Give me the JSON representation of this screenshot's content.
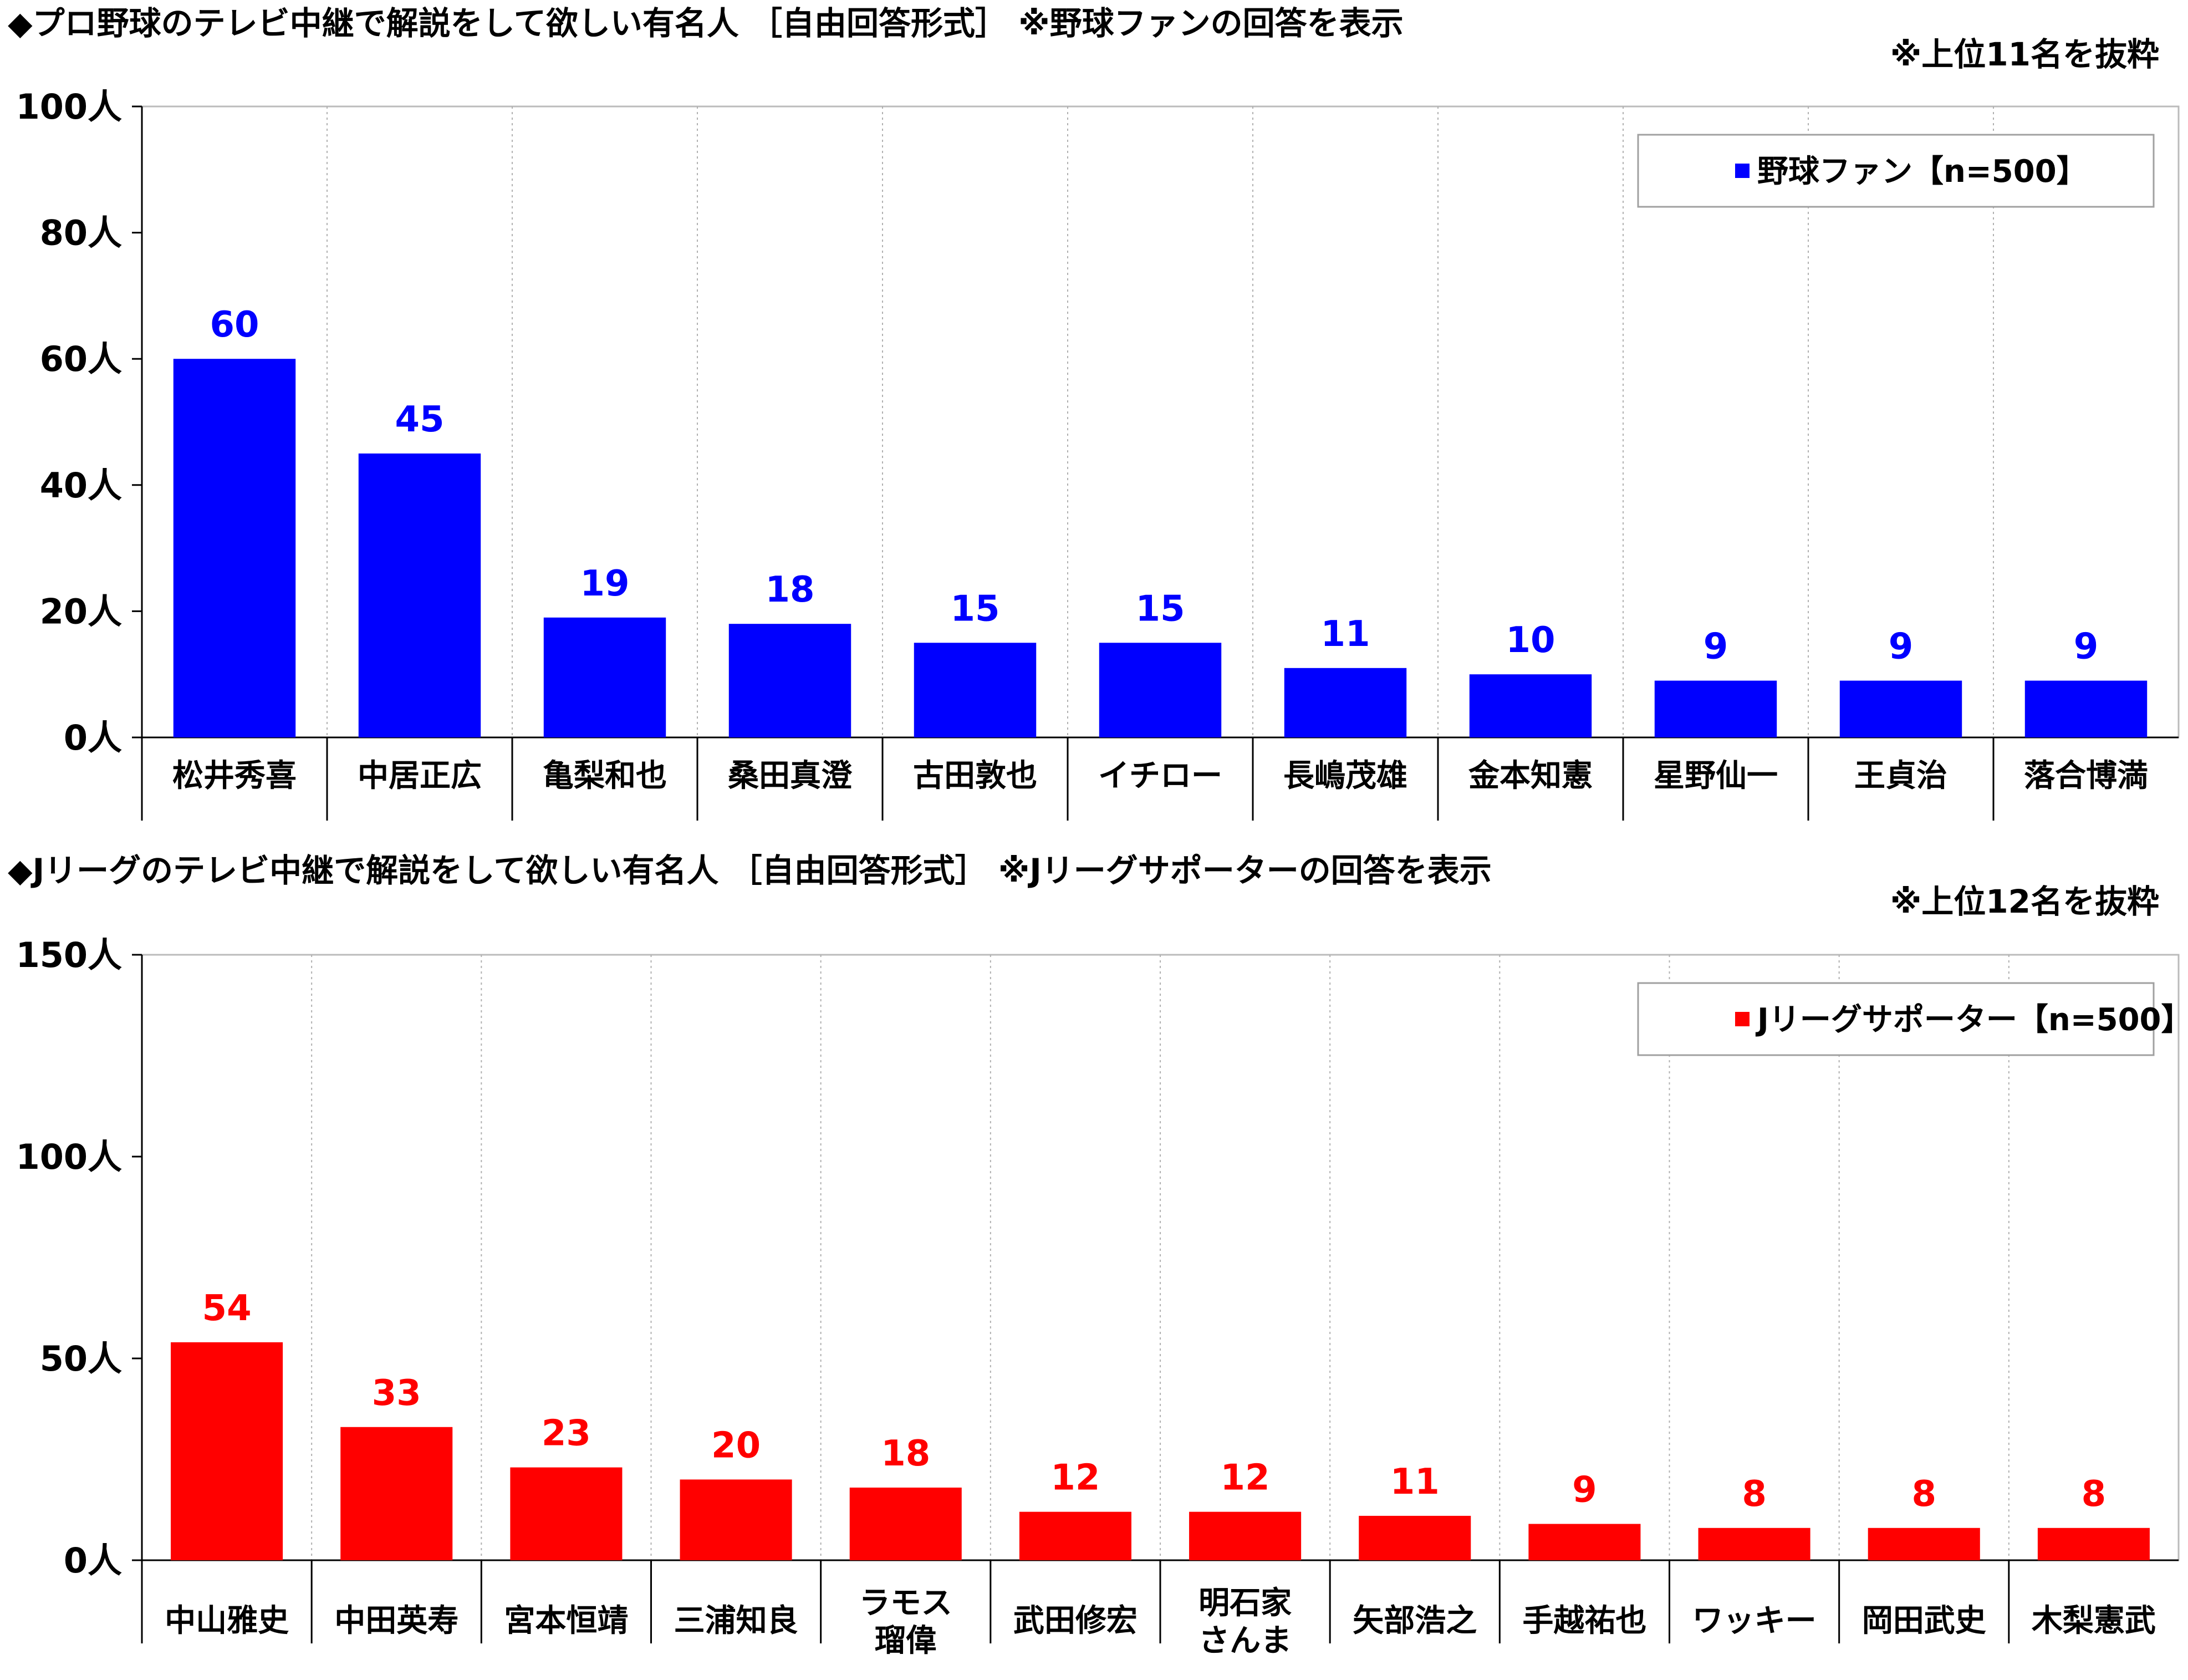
{
  "chart_data": [
    {
      "type": "bar",
      "title": "◆プロ野球のテレビ中継で解説をして欲しい有名人 ［自由回答形式］ ※野球ファンの回答を表示",
      "note": "※上位11名を抜粋",
      "categories": [
        "松井秀喜",
        "中居正広",
        "亀梨和也",
        "桑田真澄",
        "古田敦也",
        "イチロー",
        "長嶋茂雄",
        "金本知憲",
        "星野仙一",
        "王貞治",
        "落合博満"
      ],
      "series": [
        {
          "name": "野球ファン【n=500】",
          "color": "#0000ff",
          "values": [
            60,
            45,
            19,
            18,
            15,
            15,
            11,
            10,
            9,
            9,
            9
          ]
        }
      ],
      "ylim": [
        0,
        100
      ],
      "yticks": [
        "0人",
        "20人",
        "40人",
        "60人",
        "80人",
        "100人"
      ],
      "grid": "vertical-dotted",
      "legend": "top-right"
    },
    {
      "type": "bar",
      "title": "◆Jリーグのテレビ中継で解説をして欲しい有名人 ［自由回答形式］ ※Jリーグサポーターの回答を表示",
      "note": "※上位12名を抜粋",
      "categories": [
        "中山雅史",
        "中田英寿",
        "宮本恒靖",
        "三浦知良",
        "ラモス\n瑠偉",
        "武田修宏",
        "明石家\nさんま",
        "矢部浩之",
        "手越祐也",
        "ワッキー",
        "岡田武史",
        "木梨憲武"
      ],
      "series": [
        {
          "name": "Jリーグサポーター【n=500】",
          "color": "#ff0000",
          "values": [
            54,
            33,
            23,
            20,
            18,
            12,
            12,
            11,
            9,
            8,
            8,
            8
          ]
        }
      ],
      "ylim": [
        0,
        150
      ],
      "yticks": [
        "0人",
        "50人",
        "100人",
        "150人"
      ],
      "grid": "vertical-dotted",
      "legend": "top-right"
    }
  ]
}
